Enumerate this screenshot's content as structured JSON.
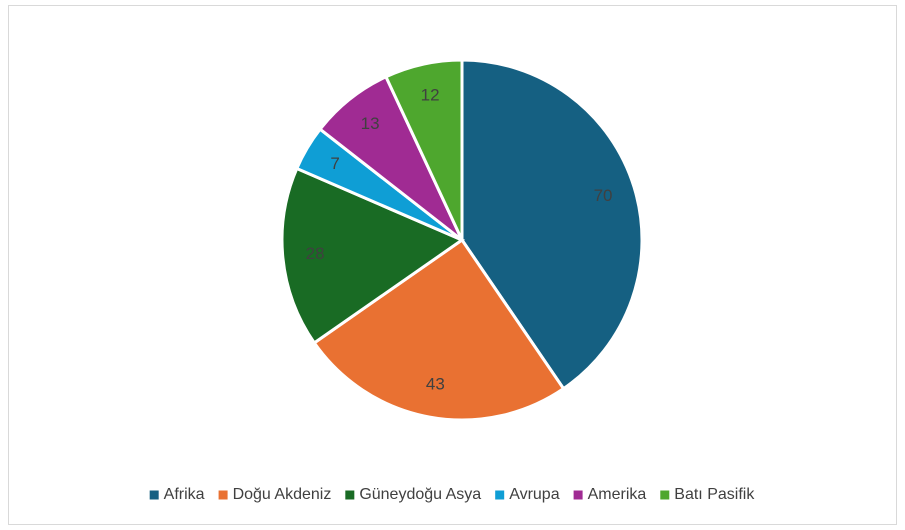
{
  "chart_data": {
    "type": "pie",
    "categories": [
      "Afrika",
      "Doğu Akdeniz",
      "Güneydoğu Asya",
      "Avrupa",
      "Amerika",
      "Batı Pasifik"
    ],
    "values": [
      70,
      43,
      28,
      7,
      13,
      12
    ],
    "colors": [
      "#156082",
      "#e97132",
      "#196b24",
      "#0f9ed5",
      "#a02b93",
      "#4ea72e"
    ],
    "legend": "bottom"
  }
}
